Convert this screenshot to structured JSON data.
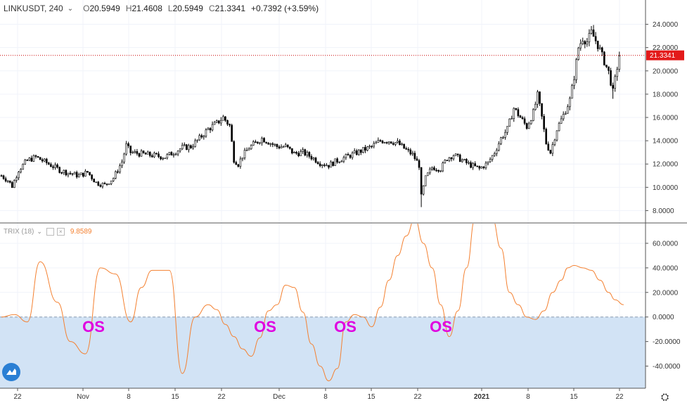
{
  "header": {
    "symbol": "LINKUSDT, 240",
    "open_label": "O",
    "open_value": "20.5949",
    "high_label": "H",
    "high_value": "21.4608",
    "low_label": "L",
    "low_value": "20.5949",
    "close_label": "C",
    "close_value": "21.3341",
    "change": "+0.7392 (+3.59%)"
  },
  "indicator": {
    "name": "TRIX (18)",
    "value": "9.8589",
    "color": "#f48030"
  },
  "annotations": [
    "OS",
    "OS",
    "OS",
    "OS"
  ],
  "colors": {
    "candle": "#000000",
    "trix": "#f48030",
    "oversold_zone": "#d2e3f5",
    "price_line": "#cc0000",
    "price_badge": "#e31a1a",
    "annotation": "#e000e0"
  },
  "chart_data": [
    {
      "type": "candlestick",
      "title": "LINKUSDT, 240",
      "ylim": [
        7,
        25
      ],
      "y_ticks": [
        "24.0000",
        "22.0000",
        "20.0000",
        "18.0000",
        "16.0000",
        "14.0000",
        "12.0000",
        "10.0000",
        "8.0000"
      ],
      "y_tick_values": [
        24,
        22,
        20,
        18,
        16,
        14,
        12,
        10,
        8
      ],
      "current_price": 21.3341,
      "current_price_label": "21.3341",
      "approx_close_path": [
        [
          0,
          11.0
        ],
        [
          3,
          10.6
        ],
        [
          5,
          10.1
        ],
        [
          8,
          11.5
        ],
        [
          12,
          12.3
        ],
        [
          16,
          12.6
        ],
        [
          20,
          12.2
        ],
        [
          24,
          11.8
        ],
        [
          28,
          11.4
        ],
        [
          32,
          11.2
        ],
        [
          36,
          11.0
        ],
        [
          40,
          11.3
        ],
        [
          44,
          10.4
        ],
        [
          48,
          10.2
        ],
        [
          52,
          10.8
        ],
        [
          56,
          12.2
        ],
        [
          58,
          13.6
        ],
        [
          60,
          13.0
        ],
        [
          64,
          12.9
        ],
        [
          68,
          12.8
        ],
        [
          72,
          12.7
        ],
        [
          76,
          12.6
        ],
        [
          80,
          13.0
        ],
        [
          84,
          13.4
        ],
        [
          88,
          13.5
        ],
        [
          92,
          14.2
        ],
        [
          96,
          15.0
        ],
        [
          100,
          15.5
        ],
        [
          103,
          16.0
        ],
        [
          106,
          15.3
        ],
        [
          108,
          12.4
        ],
        [
          110,
          12.0
        ],
        [
          112,
          12.7
        ],
        [
          115,
          13.4
        ],
        [
          118,
          13.8
        ],
        [
          121,
          14.2
        ],
        [
          124,
          13.9
        ],
        [
          128,
          13.5
        ],
        [
          132,
          13.5
        ],
        [
          136,
          12.9
        ],
        [
          140,
          13.0
        ],
        [
          144,
          12.6
        ],
        [
          148,
          12.1
        ],
        [
          152,
          11.9
        ],
        [
          156,
          12.3
        ],
        [
          160,
          12.6
        ],
        [
          164,
          12.9
        ],
        [
          168,
          13.2
        ],
        [
          172,
          13.5
        ],
        [
          176,
          14.0
        ],
        [
          180,
          14.0
        ],
        [
          184,
          13.8
        ],
        [
          188,
          13.2
        ],
        [
          191,
          12.8
        ],
        [
          194,
          11.9
        ],
        [
          195,
          9.2
        ],
        [
          197,
          10.8
        ],
        [
          200,
          11.7
        ],
        [
          204,
          11.6
        ],
        [
          207,
          12.5
        ],
        [
          210,
          12.8
        ],
        [
          214,
          12.3
        ],
        [
          218,
          11.9
        ],
        [
          222,
          11.6
        ],
        [
          226,
          12.1
        ],
        [
          229,
          13.0
        ],
        [
          232,
          14.2
        ],
        [
          235,
          15.0
        ],
        [
          238,
          16.8
        ],
        [
          241,
          16.0
        ],
        [
          244,
          15.2
        ],
        [
          247,
          16.4
        ],
        [
          249,
          17.9
        ],
        [
          251,
          16.0
        ],
        [
          253,
          13.8
        ],
        [
          255,
          13.0
        ],
        [
          258,
          15.0
        ],
        [
          261,
          16.2
        ],
        [
          264,
          17.5
        ],
        [
          266,
          19.5
        ],
        [
          268,
          22.0
        ],
        [
          270,
          22.8
        ],
        [
          272,
          22.5
        ],
        [
          274,
          23.3
        ],
        [
          276,
          22.6
        ],
        [
          278,
          21.8
        ],
        [
          280,
          20.8
        ],
        [
          282,
          19.9
        ],
        [
          284,
          18.2
        ],
        [
          286,
          20.3
        ],
        [
          287,
          21.33
        ]
      ]
    },
    {
      "type": "line",
      "title": "TRIX (18)",
      "ylim": [
        -58,
        76
      ],
      "y_ticks": [
        "60.0000",
        "40.0000",
        "20.0000",
        "0.0000",
        "-20.0000",
        "-40.0000"
      ],
      "y_tick_values": [
        60,
        40,
        20,
        0,
        -20,
        -40
      ],
      "shaded_zone": [
        -58,
        0
      ],
      "x_ticks": [
        "22",
        "Nov",
        "8",
        "15",
        "22",
        "Dec",
        "8",
        "15",
        "22",
        "2021",
        "8",
        "15",
        "22"
      ],
      "x": [
        0,
        6,
        12,
        18,
        26,
        32,
        39,
        46,
        53,
        60,
        65,
        70,
        78,
        84,
        90,
        96,
        100,
        104,
        108,
        112,
        116,
        120,
        124,
        128,
        132,
        136,
        140,
        144,
        148,
        152,
        156,
        160,
        164,
        168,
        172,
        176,
        180,
        184,
        188,
        192,
        196,
        200,
        204,
        208,
        212,
        216,
        220,
        224,
        228,
        232,
        236,
        240,
        244,
        248,
        252,
        256,
        260,
        263,
        266,
        270,
        274,
        278,
        282,
        285,
        289
      ],
      "values": [
        0,
        2,
        -4,
        45,
        12,
        -20,
        -30,
        40,
        35,
        -4,
        24,
        38,
        38,
        -46,
        0,
        10,
        6,
        -6,
        -16,
        -26,
        -32,
        -17,
        5,
        10,
        26,
        24,
        4,
        -22,
        -40,
        -52,
        -42,
        -4,
        2,
        0,
        -8,
        8,
        30,
        50,
        66,
        80,
        60,
        40,
        10,
        -16,
        5,
        40,
        80,
        90,
        80,
        56,
        20,
        10,
        0,
        -2,
        5,
        20,
        30,
        40,
        42,
        40,
        38,
        30,
        20,
        14,
        10
      ]
    }
  ]
}
